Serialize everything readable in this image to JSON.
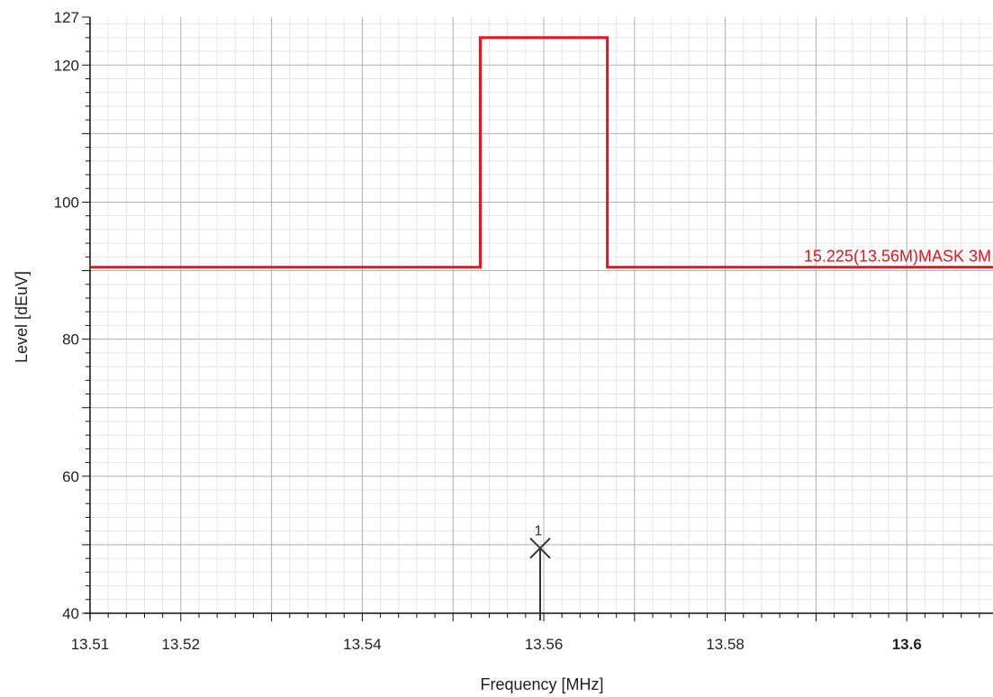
{
  "chart_data": {
    "type": "line",
    "xlabel": "Frequency [MHz]",
    "ylabel": "Level [dEuV]",
    "xlim": [
      13.51,
      13.6095
    ],
    "ylim": [
      40,
      127
    ],
    "x_ticks": [
      13.51,
      13.52,
      13.54,
      13.56,
      13.58,
      13.6
    ],
    "x_tick_labels": [
      "13.51",
      "13.52",
      "13.54",
      "13.56",
      "13.58",
      "13.6"
    ],
    "y_ticks": [
      40,
      60,
      80,
      100,
      120,
      127
    ],
    "y_tick_labels": [
      "40",
      "60",
      "80",
      "100",
      "120",
      "127"
    ],
    "grid": true,
    "series": [
      {
        "name": "15.225(13.56M)MASK 3M",
        "color": "#e8141e",
        "x": [
          13.51,
          13.553,
          13.553,
          13.567,
          13.567,
          13.6095
        ],
        "y": [
          90.5,
          90.5,
          124,
          124,
          90.5,
          90.5
        ]
      }
    ],
    "markers": [
      {
        "label": "1",
        "x": 13.5596,
        "y": 49.5,
        "color": "#333333"
      }
    ]
  }
}
